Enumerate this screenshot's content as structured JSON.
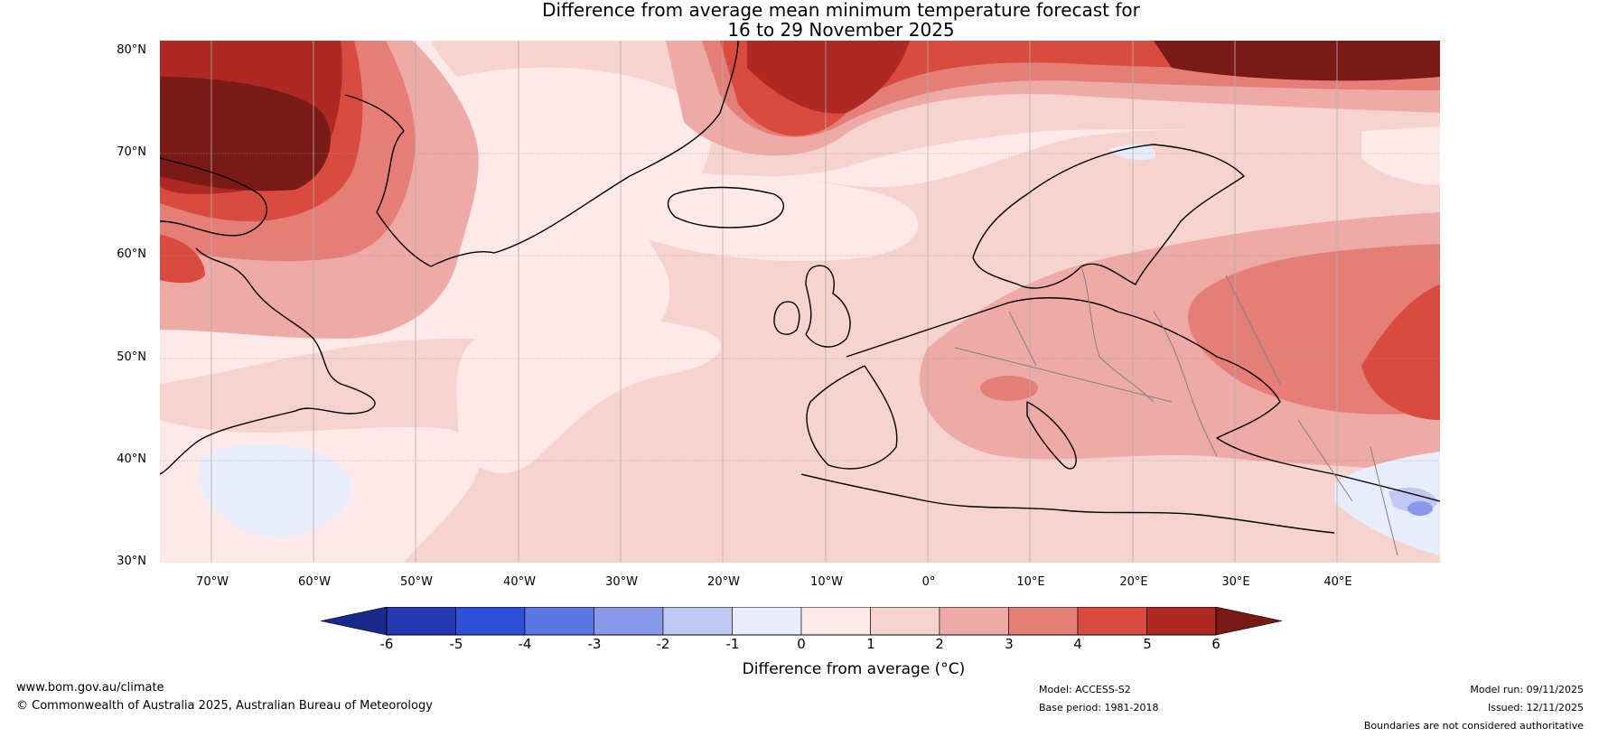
{
  "title": {
    "line1": "Difference from average mean minimum temperature forecast for",
    "line2": "16 to 29 November 2025"
  },
  "map": {
    "latitude_labels": [
      "80°N",
      "70°N",
      "60°N",
      "50°N",
      "40°N",
      "30°N"
    ],
    "longitude_labels": [
      "70°W",
      "60°W",
      "50°W",
      "40°W",
      "30°W",
      "20°W",
      "10°W",
      "0°",
      "10°E",
      "20°E",
      "30°E",
      "40°E"
    ],
    "extent": {
      "lon_min": -75,
      "lon_max": 50,
      "lat_min": 30,
      "lat_max": 81
    }
  },
  "colorbar": {
    "ticks": [
      "-6",
      "-5",
      "-4",
      "-3",
      "-2",
      "-1",
      "0",
      "1",
      "2",
      "3",
      "4",
      "5",
      "6"
    ],
    "bins": [
      {
        "range": "< -6",
        "color": "#1a2a8a"
      },
      {
        "range": "-6 to -5",
        "color": "#2639b0"
      },
      {
        "range": "-5 to -4",
        "color": "#2f4fd9"
      },
      {
        "range": "-4 to -3",
        "color": "#5d76e4"
      },
      {
        "range": "-3 to -2",
        "color": "#8899ea"
      },
      {
        "range": "-2 to -1",
        "color": "#c0c8f3"
      },
      {
        "range": "-1 to 0",
        "color": "#e8ecfb"
      },
      {
        "range": "0 to 1",
        "color": "#fde9e7"
      },
      {
        "range": "1 to 2",
        "color": "#f7d3d0"
      },
      {
        "range": "2 to 3",
        "color": "#eeaaa6"
      },
      {
        "range": "3 to 4",
        "color": "#e57e77"
      },
      {
        "range": "4 to 5",
        "color": "#d94a3f"
      },
      {
        "range": "5 to 6",
        "color": "#ae2824"
      },
      {
        "range": "> 6",
        "color": "#7a1a16"
      }
    ],
    "label": "Difference from average (°C)"
  },
  "footer": {
    "website": "www.bom.gov.au/climate",
    "copyright": "© Commonwealth of Australia 2025, Australian Bureau of Meteorology",
    "model": "Model: ACCESS-S2",
    "base_period": "Base period: 1981-2018",
    "model_run": "Model run: 09/11/2025",
    "issued": "Issued: 12/11/2025",
    "disclaimer": "Boundaries are not considered authoritative"
  }
}
